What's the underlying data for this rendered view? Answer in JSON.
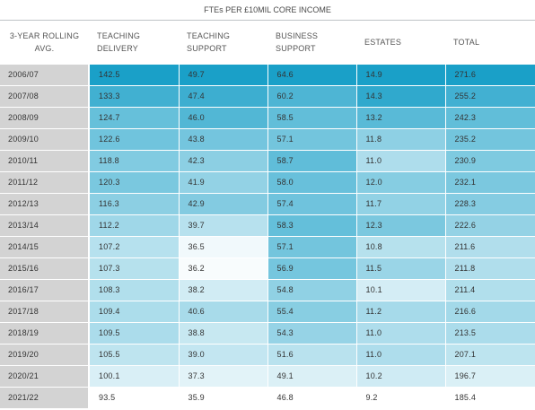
{
  "title": "FTEs PER £10MIL CORE INCOME",
  "headers": [
    "3-YEAR ROLLING AVG.",
    "TEACHING DELIVERY",
    "TEACHING SUPPORT",
    "BUSINESS SUPPORT",
    "ESTATES",
    "TOTAL"
  ],
  "rows": [
    {
      "year": "2006/07",
      "values": [
        "142.5",
        "49.7",
        "64.6",
        "14.9",
        "271.6"
      ]
    },
    {
      "year": "2007/08",
      "values": [
        "133.3",
        "47.4",
        "60.2",
        "14.3",
        "255.2"
      ]
    },
    {
      "year": "2008/09",
      "values": [
        "124.7",
        "46.0",
        "58.5",
        "13.2",
        "242.3"
      ]
    },
    {
      "year": "2009/10",
      "values": [
        "122.6",
        "43.8",
        "57.1",
        "11.8",
        "235.2"
      ]
    },
    {
      "year": "2010/11",
      "values": [
        "118.8",
        "42.3",
        "58.7",
        "11.0",
        "230.9"
      ]
    },
    {
      "year": "2011/12",
      "values": [
        "120.3",
        "41.9",
        "58.0",
        "12.0",
        "232.1"
      ]
    },
    {
      "year": "2012/13",
      "values": [
        "116.3",
        "42.9",
        "57.4",
        "11.7",
        "228.3"
      ]
    },
    {
      "year": "2013/14",
      "values": [
        "112.2",
        "39.7",
        "58.3",
        "12.3",
        "222.6"
      ]
    },
    {
      "year": "2014/15",
      "values": [
        "107.2",
        "36.5",
        "57.1",
        "10.8",
        "211.6"
      ]
    },
    {
      "year": "2015/16",
      "values": [
        "107.3",
        "36.2",
        "56.9",
        "11.5",
        "211.8"
      ]
    },
    {
      "year": "2016/17",
      "values": [
        "108.3",
        "38.2",
        "54.8",
        "10.1",
        "211.4"
      ]
    },
    {
      "year": "2017/18",
      "values": [
        "109.4",
        "40.6",
        "55.4",
        "11.2",
        "216.6"
      ]
    },
    {
      "year": "2018/19",
      "values": [
        "109.5",
        "38.8",
        "54.3",
        "11.0",
        "213.5"
      ]
    },
    {
      "year": "2019/20",
      "values": [
        "105.5",
        "39.0",
        "51.6",
        "11.0",
        "207.1"
      ]
    },
    {
      "year": "2020/21",
      "values": [
        "100.1",
        "37.3",
        "49.1",
        "10.2",
        "196.7"
      ]
    },
    {
      "year": "2021/22",
      "values": [
        "93.5",
        "35.9",
        "46.8",
        "9.2",
        "185.4"
      ]
    }
  ],
  "colors": {
    "heat_high": "#1aa0c8",
    "heat_low": "#ffffff",
    "year_cell": "#d3d3d3"
  }
}
